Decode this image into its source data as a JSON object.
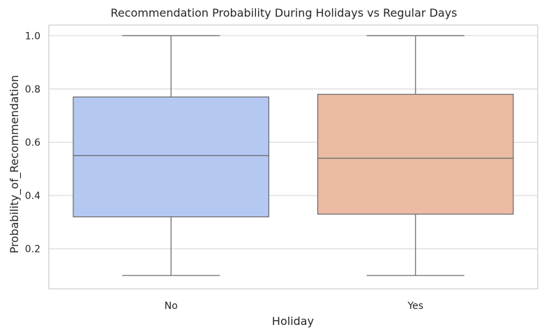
{
  "chart_data": {
    "type": "box",
    "title": "Recommendation Probability During Holidays vs Regular Days",
    "xlabel": "Holiday",
    "ylabel": "Probability_of_Recommendation",
    "categories": [
      "No",
      "Yes"
    ],
    "ylim": [
      0.05,
      1.04
    ],
    "yticks": [
      0.2,
      0.4,
      0.6,
      0.8,
      1.0
    ],
    "ytick_labels": [
      "0.2",
      "0.4",
      "0.6",
      "0.8",
      "1.0"
    ],
    "grid": "horizontal",
    "boxes": [
      {
        "category": "No",
        "min": 0.1,
        "q1": 0.32,
        "median": 0.55,
        "q3": 0.77,
        "max": 1.0,
        "color": "#b4c8f2"
      },
      {
        "category": "Yes",
        "min": 0.1,
        "q1": 0.33,
        "median": 0.54,
        "q3": 0.78,
        "max": 1.0,
        "color": "#ebbba4"
      }
    ],
    "line_color": "#6e6e6e",
    "grid_color": "#d9d9d9",
    "spine_color": "#cccccc"
  }
}
